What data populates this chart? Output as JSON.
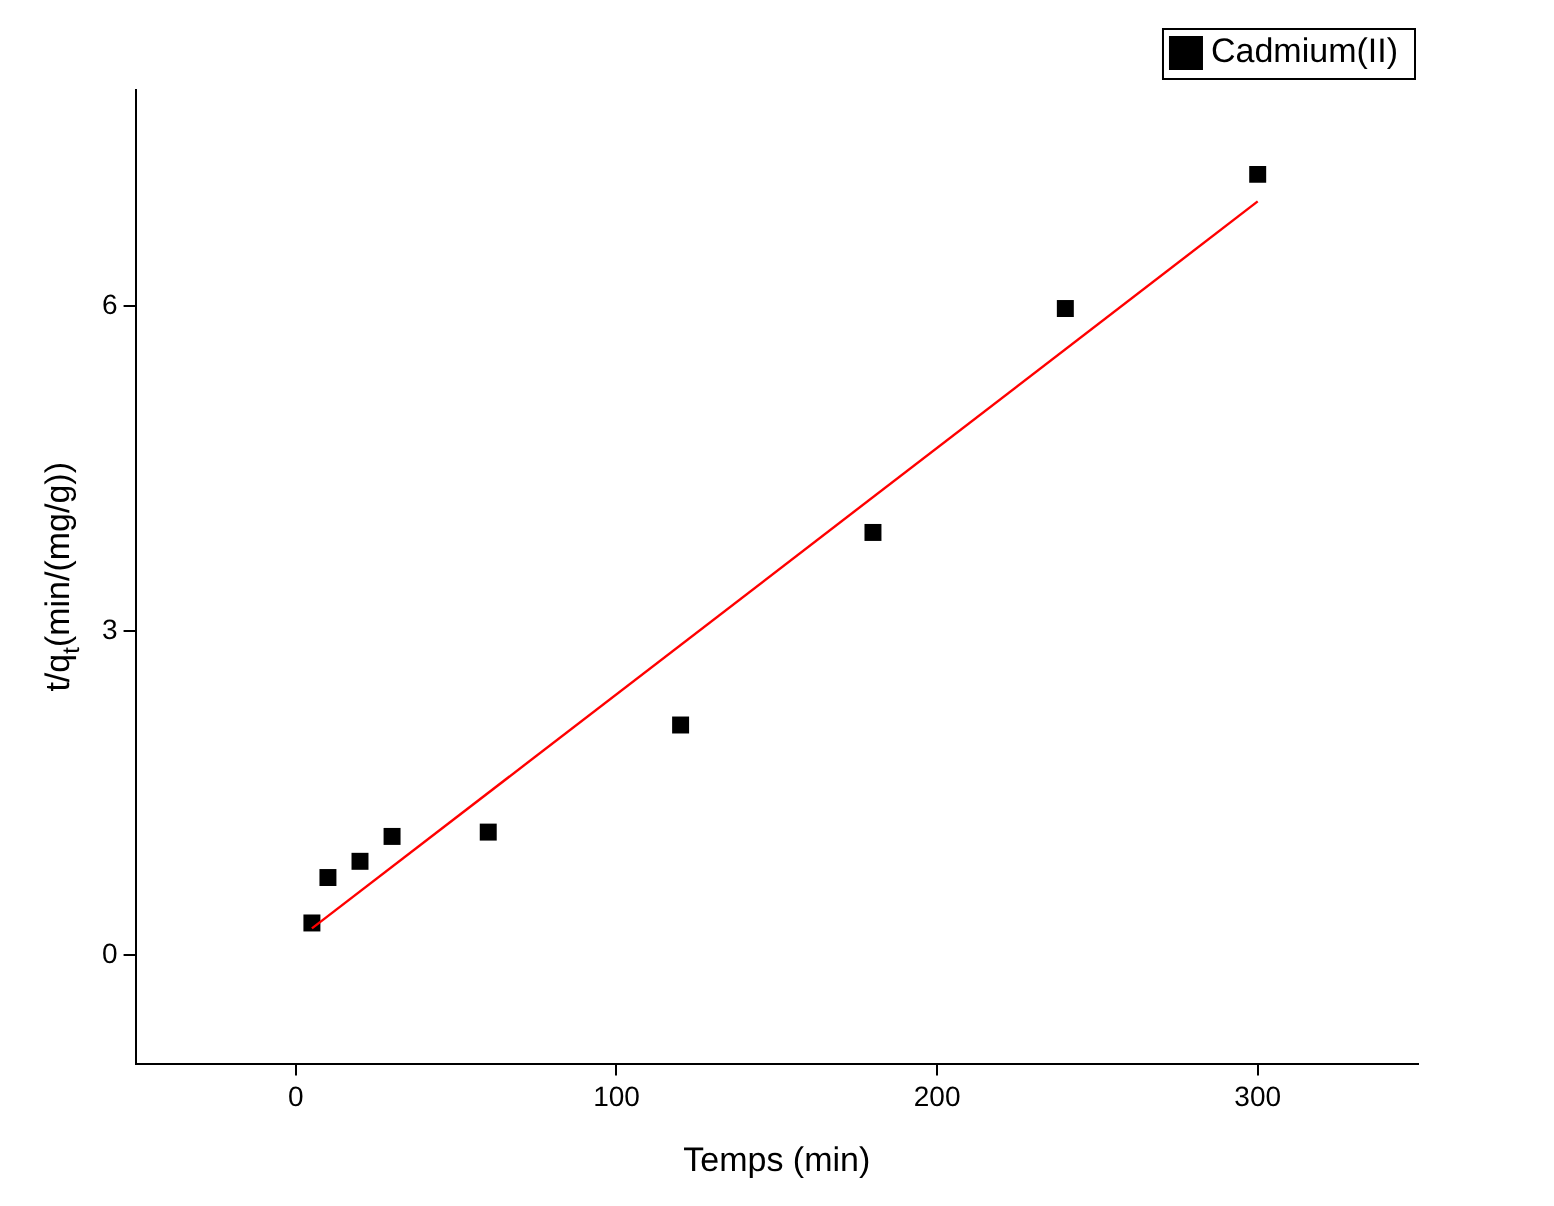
{
  "chart_data": {
    "type": "scatter",
    "xlabel": "Temps (min)",
    "ylabel": "t/q$_{t}$(min/(mg/g))",
    "xlim": [
      -50,
      350
    ],
    "xticks": [
      0,
      100,
      200,
      300
    ],
    "ylim": [
      -1,
      8
    ],
    "yticks": [
      0,
      3,
      6
    ],
    "grid": false,
    "legend": "top right",
    "series": [
      {
        "name": "Cadmium(II)",
        "color": "#000000",
        "marker": "square",
        "x": [
          5,
          10,
          20,
          30,
          60,
          120,
          180,
          240,
          300
        ],
        "values": [
          0.3,
          0.72,
          0.87,
          1.1,
          1.14,
          2.13,
          3.91,
          5.98,
          7.22
        ]
      },
      {
        "type": "line",
        "color": "#ff0000",
        "marker": "none",
        "x": [
          5,
          300
        ],
        "values": [
          0.25,
          6.97
        ]
      }
    ]
  }
}
